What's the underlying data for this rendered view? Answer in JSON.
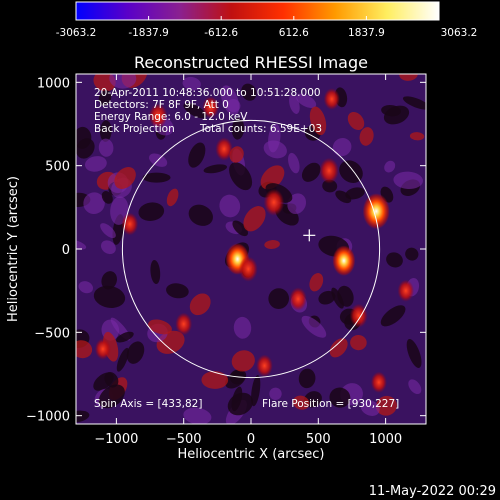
{
  "colorbar": {
    "tick_labels": [
      "-3063.2",
      "-1837.9",
      "-612.6",
      "612.6",
      "1837.9",
      "3063.2"
    ],
    "range": [
      -3063.2,
      3063.2
    ],
    "colors": [
      "#0000ff",
      "#5a00c8",
      "#8a2090",
      "#c01010",
      "#ff3000",
      "#ff9a00",
      "#ffee60",
      "#ffffff"
    ]
  },
  "chart_data": {
    "type": "heatmap",
    "title": "Reconstructed RHESSI Image",
    "xlabel": "Heliocentric X (arcsec)",
    "ylabel": "Heliocentric Y (arcsec)",
    "xlim": [
      -1300,
      1300
    ],
    "ylim": [
      -1050,
      1050
    ],
    "x_ticks": [
      -1000,
      -500,
      0,
      500,
      1000
    ],
    "y_ticks": [
      -1000,
      -500,
      0,
      500,
      1000
    ],
    "x_tick_labels": [
      "−1000",
      "−500",
      "0",
      "500",
      "1000"
    ],
    "y_tick_labels": [
      "−1000",
      "−500",
      "0",
      "500",
      "1000"
    ],
    "annotations": {
      "line1": "20-Apr-2011 10:48:36.000 to 10:51:28.000",
      "line2": "Detectors: 7F 8F 9F, Att 0",
      "line3": "Energy Range: 6.0 - 12.0 keV",
      "line4a": "Back Projection",
      "line4b": "Total counts: 6.59E+03"
    },
    "spin_axis_label": "Spin Axis = [433,82]",
    "flare_position_label": "Flare Position = [930,227]",
    "spin_axis": [
      433,
      82
    ],
    "flare_position": [
      930,
      227
    ],
    "solar_limb_radius": 955,
    "hot_spots": [
      {
        "x": 930,
        "y": 227,
        "value": 3063
      },
      {
        "x": -100,
        "y": -60,
        "value": 2400
      },
      {
        "x": 690,
        "y": -70,
        "value": 2200
      },
      {
        "x": 170,
        "y": 280,
        "value": 1700
      },
      {
        "x": 580,
        "y": 470,
        "value": 1500
      },
      {
        "x": -20,
        "y": -120,
        "value": 1400
      },
      {
        "x": -690,
        "y": 800,
        "value": 1300
      },
      {
        "x": 800,
        "y": -400,
        "value": 1200
      },
      {
        "x": 350,
        "y": -300,
        "value": 1100
      },
      {
        "x": -200,
        "y": 600,
        "value": 1100
      },
      {
        "x": -900,
        "y": 150,
        "value": 1000
      },
      {
        "x": -500,
        "y": -450,
        "value": 1000
      },
      {
        "x": 100,
        "y": -700,
        "value": 950
      },
      {
        "x": 1150,
        "y": -250,
        "value": 900
      },
      {
        "x": -300,
        "y": 850,
        "value": 900
      },
      {
        "x": 600,
        "y": 900,
        "value": 850
      },
      {
        "x": -1100,
        "y": -600,
        "value": 800
      },
      {
        "x": 950,
        "y": -800,
        "value": 800
      }
    ]
  },
  "footer": {
    "timestamp": "11-May-2022 00:29"
  }
}
